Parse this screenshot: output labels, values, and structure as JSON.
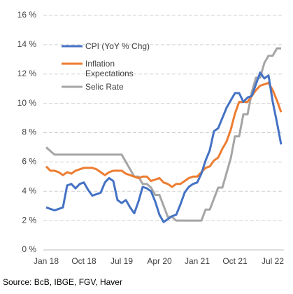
{
  "chart_data": {
    "type": "line",
    "categories": [
      "Jan 18",
      null,
      null,
      null,
      null,
      null,
      null,
      null,
      null,
      "Oct 18",
      null,
      null,
      null,
      null,
      null,
      null,
      null,
      null,
      "Jul 19",
      null,
      null,
      null,
      null,
      null,
      null,
      null,
      null,
      "Apr 20",
      null,
      null,
      null,
      null,
      null,
      null,
      null,
      null,
      "Jan 21",
      null,
      null,
      null,
      null,
      null,
      null,
      null,
      null,
      "Oct 21",
      null,
      null,
      null,
      null,
      null,
      null,
      null,
      null,
      "Jul 22",
      null,
      null
    ],
    "series": [
      {
        "name": "CPI (YoY % Chg)",
        "color": "#4472c4",
        "values": [
          2.9,
          2.8,
          2.7,
          2.8,
          2.9,
          4.4,
          4.5,
          4.2,
          4.5,
          4.6,
          4.1,
          3.7,
          3.8,
          3.9,
          4.6,
          4.9,
          4.7,
          3.4,
          3.2,
          3.4,
          2.9,
          2.5,
          3.3,
          4.3,
          4.2,
          4.0,
          3.3,
          2.4,
          1.9,
          2.1,
          2.3,
          2.4,
          3.1,
          3.9,
          4.3,
          4.5,
          4.6,
          5.2,
          6.1,
          6.8,
          8.1,
          8.3,
          9.0,
          9.7,
          10.2,
          10.7,
          10.7,
          10.1,
          10.4,
          10.5,
          11.3,
          12.1,
          11.7,
          11.9,
          10.1,
          8.7,
          7.2
        ]
      },
      {
        "name": "Inflation Expectations",
        "color": "#ed7d31",
        "values": [
          5.7,
          5.4,
          5.4,
          5.3,
          5.1,
          5.3,
          5.2,
          5.4,
          5.5,
          5.6,
          5.6,
          5.6,
          5.5,
          5.3,
          5.1,
          5.3,
          5.4,
          5.4,
          5.4,
          5.2,
          5.1,
          5.0,
          4.9,
          5.0,
          5.0,
          4.7,
          4.8,
          4.9,
          4.6,
          4.5,
          4.3,
          4.5,
          4.5,
          4.7,
          4.9,
          5.0,
          5.0,
          5.3,
          5.6,
          5.7,
          6.1,
          6.3,
          6.9,
          7.4,
          8.2,
          9.3,
          10.1,
          10.1,
          10.1,
          10.5,
          10.9,
          11.2,
          11.3,
          11.4,
          10.9,
          10.2,
          9.4
        ]
      },
      {
        "name": "Selic Rate",
        "color": "#a5a5a5",
        "values": [
          7.0,
          6.75,
          6.5,
          6.5,
          6.5,
          6.5,
          6.5,
          6.5,
          6.5,
          6.5,
          6.5,
          6.5,
          6.5,
          6.5,
          6.5,
          6.5,
          6.5,
          6.5,
          6.5,
          6.0,
          5.5,
          5.0,
          5.0,
          4.5,
          4.5,
          4.25,
          3.75,
          3.75,
          3.0,
          2.25,
          2.25,
          2.0,
          2.0,
          2.0,
          2.0,
          2.0,
          2.0,
          2.0,
          2.75,
          2.75,
          3.5,
          4.25,
          4.25,
          5.25,
          6.25,
          7.75,
          7.75,
          9.25,
          9.25,
          10.75,
          11.75,
          11.75,
          12.75,
          13.25,
          13.25,
          13.75,
          13.75
        ]
      }
    ],
    "ylim": [
      0,
      16
    ],
    "yticks": [
      {
        "value": 0,
        "label": "0 %"
      },
      {
        "value": 2,
        "label": "2 %"
      },
      {
        "value": 4,
        "label": "4 %"
      },
      {
        "value": 6,
        "label": "6 %"
      },
      {
        "value": 8,
        "label": "8 %"
      },
      {
        "value": 10,
        "label": "10 %"
      },
      {
        "value": 12,
        "label": "12 %"
      },
      {
        "value": 14,
        "label": "14 %"
      },
      {
        "value": 16,
        "label": "16 %"
      }
    ],
    "grid": true,
    "legend": "upper left",
    "source": "Source: BcB, IBGE, FGV, Haver"
  }
}
